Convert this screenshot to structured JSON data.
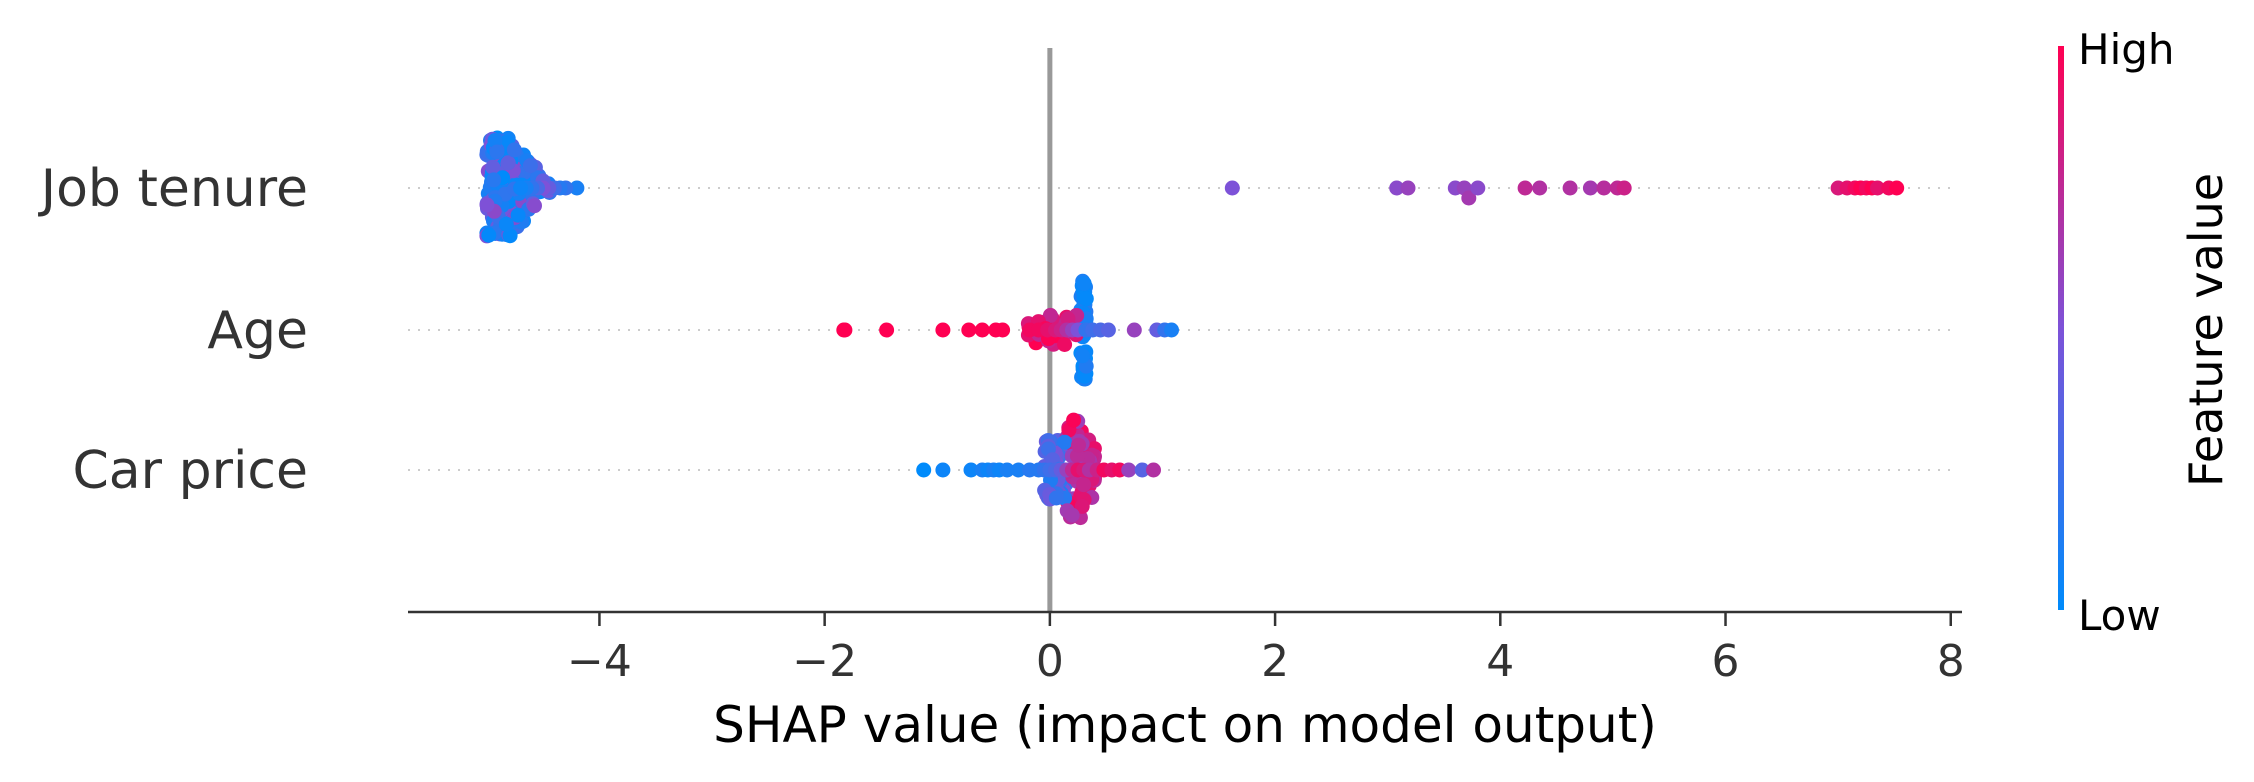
{
  "chart_data": {
    "type": "scatter",
    "subtype": "shap-beeswarm",
    "xlabel": "SHAP value (impact on model output)",
    "xlim": [
      -5.7,
      8.1
    ],
    "xticks": [
      -4,
      -2,
      0,
      2,
      4,
      6,
      8
    ],
    "xtick_labels": [
      "−4",
      "−2",
      "0",
      "2",
      "4",
      "6",
      "8"
    ],
    "features": [
      {
        "name": "Job tenure"
      },
      {
        "name": "Age"
      },
      {
        "name": "Car price"
      }
    ],
    "zero_line": true,
    "grid": "dotted horizontal per feature",
    "colorbar": {
      "title": "Feature value",
      "high_label": "High",
      "low_label": "Low",
      "low_color": "#008bfb",
      "high_color": "#ff0052"
    },
    "points": {
      "Job tenure": [
        {
          "x": -4.2,
          "v": 0.1
        },
        {
          "x": -4.3,
          "v": 0.2
        },
        {
          "x": -4.35,
          "v": 0.15
        },
        {
          "x": -4.4,
          "v": 0.25
        },
        {
          "x": -4.45,
          "v": 0.4
        },
        {
          "x": -4.5,
          "v": 0.5
        },
        {
          "x": -4.55,
          "v": 0.3
        },
        {
          "x": -4.6,
          "v": 0.2
        },
        {
          "x": -4.65,
          "v": 0.1
        },
        {
          "x": -4.7,
          "v": 0.05
        },
        {
          "x": 1.62,
          "v": 0.5
        },
        {
          "x": 3.08,
          "v": 0.55
        },
        {
          "x": 3.18,
          "v": 0.6
        },
        {
          "x": 3.6,
          "v": 0.55
        },
        {
          "x": 3.68,
          "v": 0.6
        },
        {
          "x": 3.72,
          "v": 0.65
        },
        {
          "x": 3.8,
          "v": 0.55
        },
        {
          "x": 4.22,
          "v": 0.75
        },
        {
          "x": 4.35,
          "v": 0.7
        },
        {
          "x": 4.62,
          "v": 0.7
        },
        {
          "x": 4.8,
          "v": 0.65
        },
        {
          "x": 4.92,
          "v": 0.72
        },
        {
          "x": 5.04,
          "v": 0.75
        },
        {
          "x": 5.1,
          "v": 0.8
        },
        {
          "x": 7.0,
          "v": 0.85
        },
        {
          "x": 7.08,
          "v": 0.9
        },
        {
          "x": 7.15,
          "v": 0.95
        },
        {
          "x": 7.2,
          "v": 1.0
        },
        {
          "x": 7.25,
          "v": 0.95
        },
        {
          "x": 7.3,
          "v": 1.0
        },
        {
          "x": 7.35,
          "v": 0.9
        },
        {
          "x": 7.45,
          "v": 0.95
        },
        {
          "x": 7.52,
          "v": 1.0
        }
      ],
      "Age": [
        {
          "x": -1.83,
          "v": 1.0
        },
        {
          "x": -1.82,
          "v": 1.0
        },
        {
          "x": -1.45,
          "v": 1.0
        },
        {
          "x": -0.95,
          "v": 1.0
        },
        {
          "x": -0.72,
          "v": 1.0
        },
        {
          "x": -0.6,
          "v": 1.0
        },
        {
          "x": -0.48,
          "v": 1.0
        },
        {
          "x": -0.42,
          "v": 1.0
        },
        {
          "x": -0.18,
          "v": 0.95
        },
        {
          "x": -0.1,
          "v": 0.95
        },
        {
          "x": -0.02,
          "v": 0.9
        },
        {
          "x": 0.05,
          "v": 0.85
        },
        {
          "x": 0.1,
          "v": 0.8
        },
        {
          "x": 0.15,
          "v": 0.7
        },
        {
          "x": 0.2,
          "v": 0.6
        },
        {
          "x": 0.25,
          "v": 0.5
        },
        {
          "x": 0.32,
          "v": 0.2
        },
        {
          "x": 0.38,
          "v": 0.25
        },
        {
          "x": 0.45,
          "v": 0.3
        },
        {
          "x": 0.52,
          "v": 0.35
        },
        {
          "x": 0.75,
          "v": 0.6
        },
        {
          "x": 0.95,
          "v": 0.4
        },
        {
          "x": 1.02,
          "v": 0.2
        },
        {
          "x": 1.08,
          "v": 0.1
        }
      ],
      "Car price": [
        {
          "x": -1.12,
          "v": 0.0
        },
        {
          "x": -0.95,
          "v": 0.05
        },
        {
          "x": -0.7,
          "v": 0.05
        },
        {
          "x": -0.6,
          "v": 0.1
        },
        {
          "x": -0.55,
          "v": 0.05
        },
        {
          "x": -0.5,
          "v": 0.1
        },
        {
          "x": -0.45,
          "v": 0.05
        },
        {
          "x": -0.38,
          "v": 0.1
        },
        {
          "x": -0.28,
          "v": 0.1
        },
        {
          "x": -0.18,
          "v": 0.15
        },
        {
          "x": -0.1,
          "v": 0.15
        },
        {
          "x": -0.05,
          "v": 0.2
        },
        {
          "x": 0.0,
          "v": 0.25
        },
        {
          "x": 0.05,
          "v": 0.3
        },
        {
          "x": 0.1,
          "v": 0.4
        },
        {
          "x": 0.15,
          "v": 0.6
        },
        {
          "x": 0.2,
          "v": 0.75
        },
        {
          "x": 0.25,
          "v": 0.9
        },
        {
          "x": 0.3,
          "v": 0.85
        },
        {
          "x": 0.35,
          "v": 0.7
        },
        {
          "x": 0.42,
          "v": 0.8
        },
        {
          "x": 0.48,
          "v": 0.95
        },
        {
          "x": 0.55,
          "v": 0.9
        },
        {
          "x": 0.62,
          "v": 0.95
        },
        {
          "x": 0.7,
          "v": 0.6
        },
        {
          "x": 0.82,
          "v": 0.35
        },
        {
          "x": 0.92,
          "v": 0.7
        }
      ]
    }
  }
}
